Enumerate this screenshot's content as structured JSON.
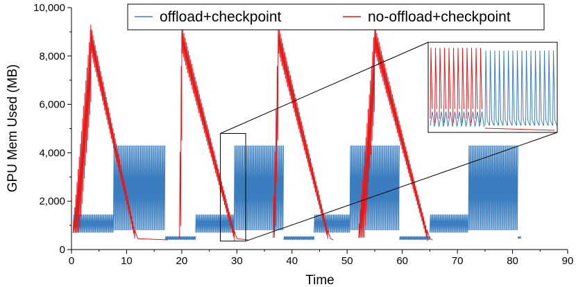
{
  "chart_data": {
    "type": "line",
    "title": "",
    "xlabel": "Time",
    "ylabel": "GPU Mem Used (MB)",
    "xlim": [
      0,
      90
    ],
    "ylim": [
      0,
      10000
    ],
    "x_ticks": [
      0,
      10,
      20,
      30,
      40,
      50,
      60,
      70,
      80,
      90
    ],
    "x_tick_labels": [
      "0",
      "10",
      "20",
      "30",
      "40",
      "50",
      "60",
      "70",
      "80",
      "90"
    ],
    "y_ticks": [
      0,
      2000,
      4000,
      6000,
      8000,
      10000
    ],
    "y_tick_labels": [
      "0",
      "2,000",
      "4,000",
      "6,000",
      "8,000",
      "10,000"
    ],
    "grid": false,
    "legend_position": "top-center",
    "inset": "zoomed view of time 27–32",
    "series": [
      {
        "name": "offload+checkpoint",
        "color": "#3a7ebf",
        "style": "dense oscillation",
        "segments": [
          {
            "x_start": 0.3,
            "x_end": 7.6,
            "low": 700,
            "high": 1450
          },
          {
            "x_start": 7.6,
            "x_end": 17.0,
            "low": 800,
            "high": 4300
          },
          {
            "x_start": 17.0,
            "x_end": 22.5,
            "low": 400,
            "high": 550
          },
          {
            "x_start": 22.5,
            "x_end": 29.5,
            "low": 700,
            "high": 1450
          },
          {
            "x_start": 29.5,
            "x_end": 38.5,
            "low": 800,
            "high": 4300
          },
          {
            "x_start": 38.5,
            "x_end": 44.0,
            "low": 400,
            "high": 550
          },
          {
            "x_start": 44.0,
            "x_end": 50.5,
            "low": 700,
            "high": 1450
          },
          {
            "x_start": 50.5,
            "x_end": 59.5,
            "low": 800,
            "high": 4300
          },
          {
            "x_start": 59.5,
            "x_end": 65.0,
            "low": 400,
            "high": 550
          },
          {
            "x_start": 65.0,
            "x_end": 72.0,
            "low": 700,
            "high": 1450
          },
          {
            "x_start": 72.0,
            "x_end": 81.0,
            "low": 800,
            "high": 4300
          },
          {
            "x_start": 81.0,
            "x_end": 81.5,
            "low": 450,
            "high": 550
          }
        ]
      },
      {
        "name": "no-offload+checkpoint",
        "color": "#e31a1c",
        "style": "dense oscillation",
        "iterations": [
          {
            "ramp_start_x": 0.2,
            "ramp_start_y": 700,
            "peak_x": 3.5,
            "peak_y": 9300,
            "end_x": 11.5,
            "end_y": 800,
            "tail_x": 17.5,
            "tail_y": 400
          },
          {
            "ramp_start_x": 19.5,
            "ramp_start_y": 500,
            "peak_x": 20.0,
            "peak_y": 9300,
            "end_x": 29.5,
            "end_y": 800,
            "tail_x": 32.0,
            "tail_y": 400
          },
          {
            "ramp_start_x": 36.5,
            "ramp_start_y": 500,
            "peak_x": 37.5,
            "peak_y": 9300,
            "end_x": 46.5,
            "end_y": 800,
            "tail_x": 47.5,
            "tail_y": 400
          },
          {
            "ramp_start_x": 52.0,
            "ramp_start_y": 500,
            "peak_x": 55.0,
            "peak_y": 9300,
            "end_x": 64.5,
            "end_y": 800,
            "tail_x": 65.5,
            "tail_y": 400
          }
        ]
      }
    ]
  }
}
